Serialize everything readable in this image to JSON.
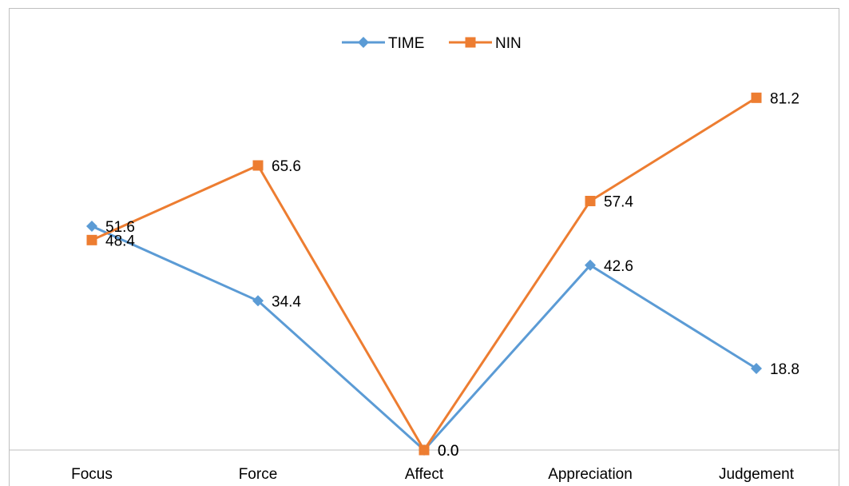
{
  "chart_data": {
    "type": "line",
    "title": "",
    "xlabel": "",
    "ylabel": "",
    "categories": [
      "Focus",
      "Force",
      "Affect",
      "Appreciation",
      "Judgement"
    ],
    "ylim": [
      0,
      100
    ],
    "grid": false,
    "legend_position": "top",
    "series": [
      {
        "name": "TIME",
        "values": [
          51.6,
          34.4,
          0.0,
          42.6,
          18.8
        ],
        "labels": [
          "51.6",
          "34.4",
          "0.0",
          "42.6",
          "18.8"
        ],
        "color": "#5b9bd5",
        "marker": "diamond"
      },
      {
        "name": "NIN",
        "values": [
          48.4,
          65.6,
          0.0,
          57.4,
          81.2
        ],
        "labels": [
          "48.4",
          "65.6",
          "0.0",
          "57.4",
          "81.2"
        ],
        "color": "#ed7d31",
        "marker": "square"
      }
    ]
  }
}
